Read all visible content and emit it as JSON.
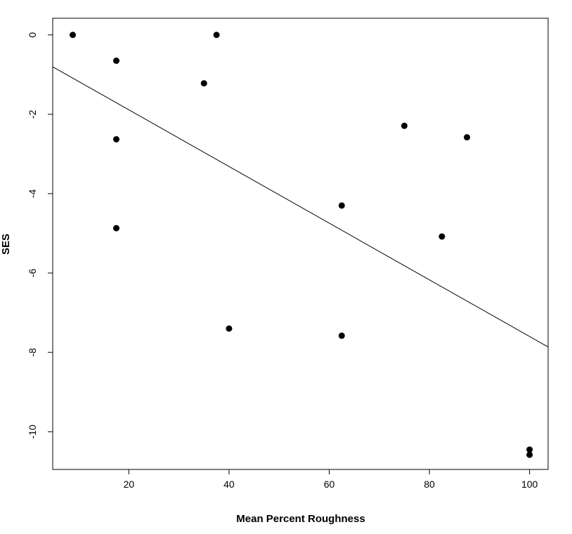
{
  "chart_data": {
    "type": "scatter",
    "title": "",
    "xlabel": "Mean Percent Roughness",
    "ylabel": "SES",
    "xlim": [
      4.8,
      103.7
    ],
    "ylim": [
      -10.95,
      0.42
    ],
    "x_ticks": [
      20,
      40,
      60,
      80,
      100
    ],
    "y_ticks": [
      0,
      -2,
      -4,
      -6,
      -8,
      -10
    ],
    "x_tick_labels": [
      "20",
      "40",
      "60",
      "80",
      "100"
    ],
    "y_tick_labels": [
      "0",
      "-2",
      "-4",
      "-6",
      "-8",
      "-10"
    ],
    "grid": false,
    "legend": "none",
    "point_color": "#000000",
    "points": [
      {
        "x": 8.8,
        "y": 0.0
      },
      {
        "x": 17.5,
        "y": -0.65
      },
      {
        "x": 37.5,
        "y": 0.0
      },
      {
        "x": 35.0,
        "y": -1.22
      },
      {
        "x": 17.5,
        "y": -2.63
      },
      {
        "x": 17.5,
        "y": -4.87
      },
      {
        "x": 40.0,
        "y": -7.4
      },
      {
        "x": 62.5,
        "y": -4.3
      },
      {
        "x": 62.5,
        "y": -7.58
      },
      {
        "x": 75.0,
        "y": -2.29
      },
      {
        "x": 87.5,
        "y": -2.58
      },
      {
        "x": 82.5,
        "y": -5.08
      },
      {
        "x": 100.0,
        "y": -10.45
      },
      {
        "x": 100.0,
        "y": -10.58
      }
    ],
    "regression_line": {
      "intercept": -0.46,
      "slope": -0.0714
    }
  }
}
